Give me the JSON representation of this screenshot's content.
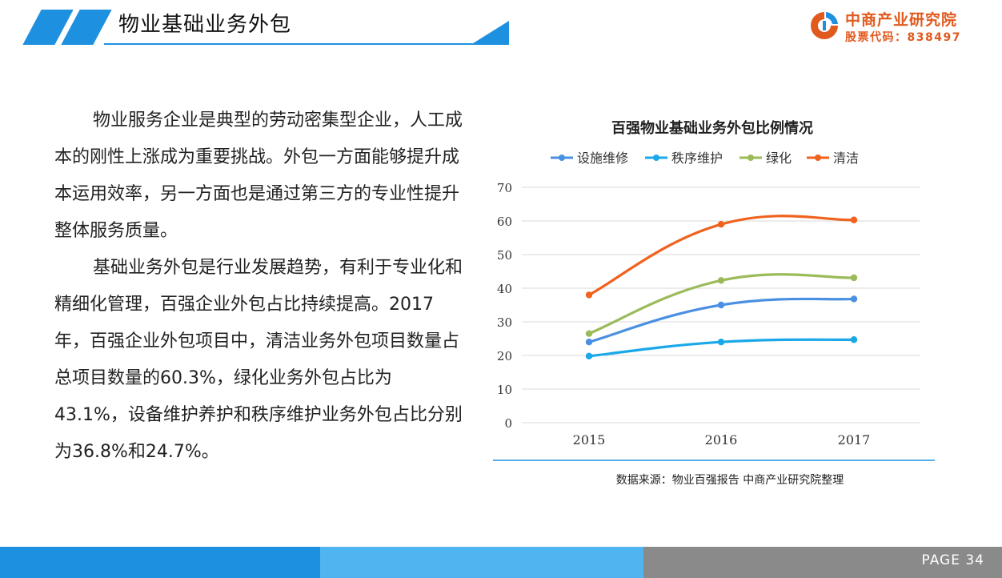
{
  "header": {
    "title": "物业基础业务外包"
  },
  "logo": {
    "name": "中商产业研究院",
    "code": "股票代码：838497"
  },
  "body": {
    "paragraph1": "物业服务企业是典型的劳动密集型企业，人工成本的刚性上涨成为重要挑战。外包一方面能够提升成本运用效率，另一方面也是通过第三方的专业性提升整体服务质量。",
    "paragraph2": "基础业务外包是行业发展趋势，有利于专业化和精细化管理，百强企业外包占比持续提高。2017年，百强企业外包项目中，清洁业务外包项目数量占总项目数量的60.3%，绿化业务外包占比为43.1%，设备维护养护和秩序维护业务外包占比分别为36.8%和24.7%。"
  },
  "chart_data": {
    "type": "line",
    "title": "百强物业基础业务外包比例情况",
    "x": [
      "2015",
      "2016",
      "2017"
    ],
    "ylim": [
      0,
      70
    ],
    "yticks": [
      0,
      10,
      20,
      30,
      40,
      50,
      60,
      70
    ],
    "grid": true,
    "legend_position": "top",
    "series": [
      {
        "name": "设施维修",
        "color": "#4a90e2",
        "values": [
          24.0,
          35.0,
          36.8
        ]
      },
      {
        "name": "秩序维护",
        "color": "#1aa8e8",
        "values": [
          19.8,
          24.0,
          24.7
        ]
      },
      {
        "name": "绿化",
        "color": "#9bbb59",
        "values": [
          26.5,
          42.3,
          43.1
        ]
      },
      {
        "name": "清洁",
        "color": "#f0621e",
        "values": [
          38.0,
          59.0,
          60.3
        ]
      }
    ],
    "source": "数据来源：物业百强报告 中商产业研究院整理"
  },
  "footer": {
    "page": "PAGE  34"
  }
}
